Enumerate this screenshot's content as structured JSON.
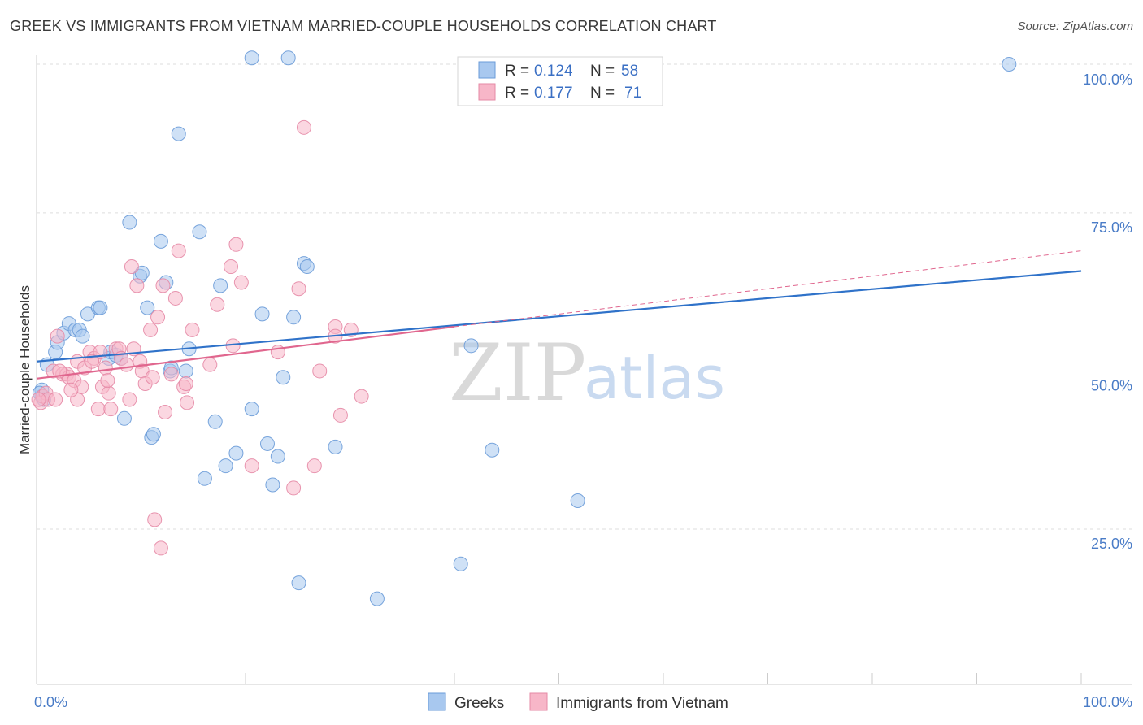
{
  "title": "GREEK VS IMMIGRANTS FROM VIETNAM MARRIED-COUPLE HOUSEHOLDS CORRELATION CHART",
  "source": "Source: ZipAtlas.com",
  "watermark": {
    "zip": "ZIP",
    "atlas": "atlas"
  },
  "legend": {
    "r_label": "R =",
    "n_label": "N =",
    "rows": [
      {
        "r": "0.124",
        "n": "58",
        "color": "#a8c8ef"
      },
      {
        "r": "0.177",
        "n": "71",
        "color": "#f7b6c8"
      }
    ]
  },
  "colors": {
    "greeks_fill": "#a8c8ef",
    "greeks_stroke": "#6a9bd8",
    "vietnam_fill": "#f7b6c8",
    "vietnam_stroke": "#e58aa6",
    "greeks_line": "#2f72c9",
    "vietnam_line": "#e0668e",
    "grid": "#dddddd"
  },
  "chart_data": {
    "type": "scatter",
    "title": "GREEK VS IMMIGRANTS FROM VIETNAM MARRIED-COUPLE HOUSEHOLDS CORRELATION CHART",
    "xlabel": "",
    "ylabel": "Married-couple Households",
    "xlim": [
      0,
      100
    ],
    "ylim": [
      5,
      103
    ],
    "x_tick_labels": [
      "0.0%",
      "100.0%"
    ],
    "y_ticks": [
      25,
      50,
      75,
      100
    ],
    "y_tick_labels": [
      "25.0%",
      "50.0%",
      "75.0%",
      "100.0%"
    ],
    "grid": true,
    "legend_placement": "top-center",
    "series": [
      {
        "name": "Greeks",
        "r": 0.124,
        "n": 58,
        "trend": [
          [
            0,
            51.5
          ],
          [
            100,
            65.8
          ]
        ],
        "points": [
          [
            0.5,
            46
          ],
          [
            0.5,
            47
          ],
          [
            0.7,
            45.5
          ],
          [
            1,
            51
          ],
          [
            1.8,
            53
          ],
          [
            2,
            54.5
          ],
          [
            2.6,
            56
          ],
          [
            3.1,
            57.5
          ],
          [
            3.7,
            56.5
          ],
          [
            4.1,
            56.5
          ],
          [
            4.4,
            55.5
          ],
          [
            4.9,
            59
          ],
          [
            5.9,
            60
          ],
          [
            6.1,
            60
          ],
          [
            6.9,
            52
          ],
          [
            7.1,
            53
          ],
          [
            7.6,
            52.5
          ],
          [
            8.1,
            52
          ],
          [
            8.4,
            42.5
          ],
          [
            8.9,
            73.5
          ],
          [
            9.9,
            65
          ],
          [
            10.1,
            65.5
          ],
          [
            10.6,
            60
          ],
          [
            11,
            39.5
          ],
          [
            11.2,
            40
          ],
          [
            11.9,
            70.5
          ],
          [
            12.4,
            64
          ],
          [
            12.8,
            50
          ],
          [
            12.9,
            50.5
          ],
          [
            13.6,
            87.5
          ],
          [
            14.3,
            50
          ],
          [
            14.6,
            53.5
          ],
          [
            15.6,
            72
          ],
          [
            16.1,
            33
          ],
          [
            17.1,
            42
          ],
          [
            17.6,
            63.5
          ],
          [
            18.1,
            35
          ],
          [
            19.1,
            37
          ],
          [
            20.6,
            99.5
          ],
          [
            20.6,
            44
          ],
          [
            21.6,
            59
          ],
          [
            22.1,
            38.5
          ],
          [
            22.6,
            32
          ],
          [
            23.1,
            36.5
          ],
          [
            23.6,
            49
          ],
          [
            24.1,
            99.5
          ],
          [
            24.6,
            58.5
          ],
          [
            25.1,
            16.5
          ],
          [
            25.6,
            67
          ],
          [
            25.9,
            66.5
          ],
          [
            28.6,
            38
          ],
          [
            32.6,
            14
          ],
          [
            40.6,
            19.5
          ],
          [
            41.6,
            54
          ],
          [
            43.6,
            37.5
          ],
          [
            51.8,
            29.5
          ],
          [
            93.1,
            98.5
          ],
          [
            0.3,
            46.5
          ]
        ]
      },
      {
        "name": "Immigrants from Vietnam",
        "r": 0.177,
        "n": 71,
        "trend": [
          [
            0,
            48.8
          ],
          [
            40,
            57
          ]
        ],
        "trend_extension": [
          [
            40,
            57
          ],
          [
            100,
            69
          ]
        ],
        "points": [
          [
            0.4,
            45
          ],
          [
            0.6,
            46
          ],
          [
            0.9,
            46.5
          ],
          [
            1.1,
            45.5
          ],
          [
            1.6,
            50
          ],
          [
            1.8,
            45.5
          ],
          [
            2,
            55.5
          ],
          [
            2.5,
            49.5
          ],
          [
            2.9,
            49.5
          ],
          [
            3.1,
            49
          ],
          [
            3.6,
            48.5
          ],
          [
            3.9,
            51.5
          ],
          [
            3.9,
            45.5
          ],
          [
            4.3,
            47.5
          ],
          [
            4.6,
            50.5
          ],
          [
            5.1,
            53
          ],
          [
            5.5,
            52
          ],
          [
            5.9,
            44
          ],
          [
            6.1,
            53
          ],
          [
            6.3,
            47.5
          ],
          [
            6.6,
            50.5
          ],
          [
            6.9,
            46.5
          ],
          [
            7.1,
            44
          ],
          [
            7.6,
            53.5
          ],
          [
            7.9,
            53.5
          ],
          [
            8.1,
            52
          ],
          [
            8.6,
            51
          ],
          [
            8.9,
            45.5
          ],
          [
            9.1,
            66.5
          ],
          [
            9.3,
            53.5
          ],
          [
            9.6,
            63.5
          ],
          [
            9.9,
            51.5
          ],
          [
            10.1,
            50
          ],
          [
            10.4,
            48
          ],
          [
            10.9,
            56.5
          ],
          [
            11.1,
            49
          ],
          [
            11.3,
            26.5
          ],
          [
            11.6,
            58.5
          ],
          [
            11.9,
            22
          ],
          [
            12.1,
            63.5
          ],
          [
            12.3,
            43.5
          ],
          [
            12.9,
            49.5
          ],
          [
            13.3,
            61.5
          ],
          [
            13.6,
            69
          ],
          [
            14.1,
            47.5
          ],
          [
            14.3,
            48
          ],
          [
            14.4,
            45
          ],
          [
            14.9,
            56.5
          ],
          [
            16.6,
            51
          ],
          [
            17.3,
            60.5
          ],
          [
            18.6,
            66.5
          ],
          [
            18.8,
            54
          ],
          [
            19.1,
            70
          ],
          [
            19.6,
            64
          ],
          [
            20.6,
            35
          ],
          [
            23.1,
            53
          ],
          [
            24.6,
            31.5
          ],
          [
            25.1,
            63
          ],
          [
            25.6,
            88.5
          ],
          [
            26.6,
            35
          ],
          [
            27.1,
            50
          ],
          [
            28.6,
            57
          ],
          [
            28.6,
            55.5
          ],
          [
            29.1,
            43
          ],
          [
            30.1,
            56.5
          ],
          [
            31.1,
            46
          ],
          [
            0.2,
            45.5
          ],
          [
            2.2,
            50
          ],
          [
            3.3,
            47
          ],
          [
            5.3,
            51.5
          ],
          [
            6.8,
            48.5
          ]
        ]
      }
    ]
  },
  "bottom_legend": [
    "Greeks",
    "Immigrants from Vietnam"
  ]
}
